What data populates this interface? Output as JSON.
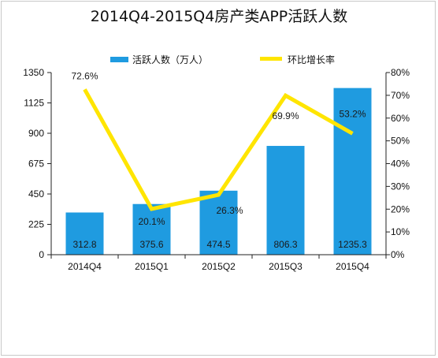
{
  "chart_data": {
    "type": "bar",
    "title": "2014Q4-2015Q4房产类APP活跃人数",
    "categories": [
      "2014Q4",
      "2015Q1",
      "2015Q2",
      "2015Q3",
      "2015Q4"
    ],
    "series": [
      {
        "name": "活跃人数（万人）",
        "type": "bar",
        "axis": "left",
        "values": [
          312.8,
          375.6,
          474.5,
          806.3,
          1235.3
        ],
        "labels": [
          "312.8",
          "375.6",
          "474.5",
          "806.3",
          "1235.3"
        ]
      },
      {
        "name": "环比增长率",
        "type": "line",
        "axis": "right",
        "values": [
          72.6,
          20.1,
          26.3,
          69.9,
          53.2
        ],
        "labels": [
          "72.6%",
          "20.1%",
          "26.3%",
          "69.9%",
          "53.2%"
        ]
      }
    ],
    "y_left": {
      "lim": [
        0,
        1350
      ],
      "ticks": [
        "0",
        "225",
        "450",
        "675",
        "900",
        "1125",
        "1350"
      ]
    },
    "y_right": {
      "lim": [
        0,
        80
      ],
      "ticks": [
        "0%",
        "10%",
        "20%",
        "30%",
        "40%",
        "50%",
        "60%",
        "70%",
        "80%"
      ]
    },
    "legend_position": "top",
    "grid": false,
    "colors": {
      "bar": "#1f9be0",
      "line": "#ffe500",
      "axis": "#222222"
    }
  }
}
